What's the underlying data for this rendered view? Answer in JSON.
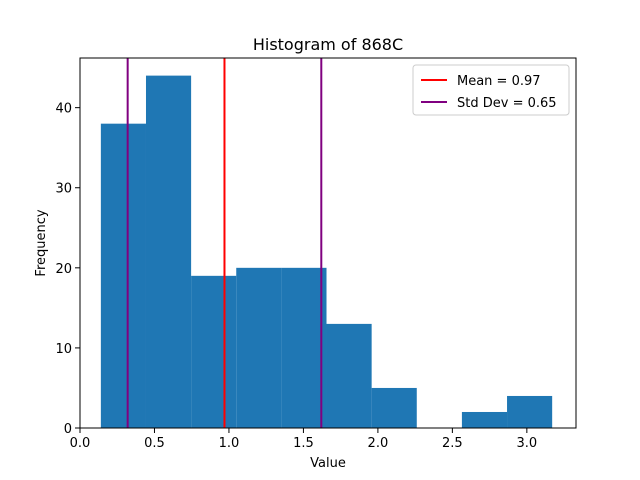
{
  "chart_data": {
    "type": "bar",
    "title": "Histogram of 868C",
    "xlabel": "Value",
    "ylabel": "Frequency",
    "xlim": [
      0.0,
      3.33
    ],
    "ylim": [
      0,
      46.2
    ],
    "xticks": [
      0.0,
      0.5,
      1.0,
      1.5,
      2.0,
      2.5,
      3.0
    ],
    "xtick_labels": [
      "0.0",
      "0.5",
      "1.0",
      "1.5",
      "2.0",
      "2.5",
      "3.0"
    ],
    "yticks": [
      0,
      10,
      20,
      30,
      40
    ],
    "ytick_labels": [
      "0",
      "10",
      "20",
      "30",
      "40"
    ],
    "bin_edges": [
      0.14,
      0.443,
      0.746,
      1.049,
      1.352,
      1.655,
      1.958,
      2.261,
      2.564,
      2.867,
      3.17
    ],
    "counts": [
      38,
      44,
      19,
      20,
      20,
      13,
      5,
      0,
      2,
      4
    ],
    "bar_color": "#1f77b4",
    "lines": [
      {
        "label": "Mean = 0.97",
        "x": 0.97,
        "color": "#ff0000"
      },
      {
        "label": "Std Dev = 0.65",
        "x": 0.32,
        "color": "#800080"
      },
      {
        "x": 1.62,
        "color": "#800080"
      }
    ],
    "legend_position": "top-right",
    "grid": false
  }
}
